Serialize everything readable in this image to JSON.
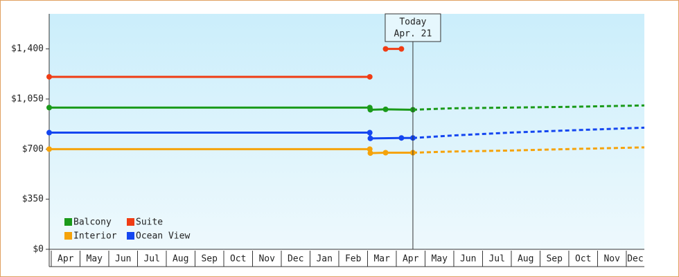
{
  "chart_data": {
    "type": "line",
    "ylim": [
      0,
      1645
    ],
    "yticks": [
      {
        "value": 0,
        "label": "$0"
      },
      {
        "value": 350,
        "label": "$350"
      },
      {
        "value": 700,
        "label": "$700"
      },
      {
        "value": 1050,
        "label": "$1,050"
      },
      {
        "value": 1400,
        "label": "$1,400"
      }
    ],
    "xlim": [
      0,
      20.7
    ],
    "xticks": [
      {
        "value": 0,
        "label": "Apr"
      },
      {
        "value": 1,
        "label": "May"
      },
      {
        "value": 2,
        "label": "Jun"
      },
      {
        "value": 3,
        "label": "Jul"
      },
      {
        "value": 4,
        "label": "Aug"
      },
      {
        "value": 5,
        "label": "Sep"
      },
      {
        "value": 6,
        "label": "Oct"
      },
      {
        "value": 7,
        "label": "Nov"
      },
      {
        "value": 8,
        "label": "Dec"
      },
      {
        "value": 9,
        "label": "Jan"
      },
      {
        "value": 10,
        "label": "Feb"
      },
      {
        "value": 11,
        "label": "Mar"
      },
      {
        "value": 12,
        "label": "Apr"
      },
      {
        "value": 13,
        "label": "May"
      },
      {
        "value": 14,
        "label": "Jun"
      },
      {
        "value": 15,
        "label": "Jul"
      },
      {
        "value": 16,
        "label": "Aug"
      },
      {
        "value": 17,
        "label": "Sep"
      },
      {
        "value": 18,
        "label": "Oct"
      },
      {
        "value": 19,
        "label": "Nov"
      },
      {
        "value": 20,
        "label": "Dec"
      }
    ],
    "today": {
      "x": 12.65,
      "label": "Today",
      "date": "Apr. 21"
    },
    "series": [
      {
        "name": "Balcony",
        "color": "#1a9a1a",
        "x": [
          0,
          11.15,
          11.17,
          11.7,
          12.65
        ],
        "values": [
          990,
          990,
          975,
          978,
          975
        ],
        "forecast": {
          "x": [
            12.65,
            14,
            16,
            18,
            20.7
          ],
          "values": [
            975,
            985,
            990,
            995,
            1005
          ]
        }
      },
      {
        "name": "Suite",
        "color": "#f03c14",
        "x": [
          0,
          11.15,
          null,
          11.7,
          12.25
        ],
        "values": [
          1205,
          1205,
          null,
          1400,
          1400
        ]
      },
      {
        "name": "Interior",
        "color": "#f5a30a",
        "x": [
          0,
          11.15,
          11.17,
          11.7,
          12.65
        ],
        "values": [
          700,
          700,
          672,
          675,
          675
        ],
        "forecast": {
          "x": [
            12.65,
            14,
            16,
            18,
            20.7
          ],
          "values": [
            675,
            683,
            690,
            700,
            712
          ]
        }
      },
      {
        "name": "Ocean View",
        "color": "#1446f0",
        "x": [
          0,
          11.15,
          11.17,
          12.25,
          12.65
        ],
        "values": [
          815,
          815,
          775,
          778,
          778
        ],
        "forecast": {
          "x": [
            12.65,
            14,
            16,
            18,
            20.7
          ],
          "values": [
            778,
            795,
            815,
            830,
            850
          ]
        }
      }
    ]
  }
}
